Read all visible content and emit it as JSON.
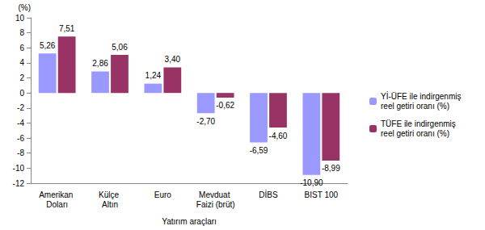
{
  "chart_data": {
    "type": "bar",
    "ylabel": "(%)",
    "xlabel": "Yatırım araçları",
    "categories": [
      "Amerikan Doları",
      "Külçe Altın",
      "Euro",
      "Mevduat Faizi (brüt)",
      "DİBS",
      "BIST 100"
    ],
    "series": [
      {
        "name": "Yİ-ÜFE ile indirgenmiş reel getiri oranı (%)",
        "color": "#9999ff",
        "values": [
          5.26,
          2.86,
          1.24,
          -2.7,
          -6.59,
          -10.9
        ],
        "value_labels": [
          "5,26",
          "2,86",
          "1,24",
          "-2,70",
          "-6,59",
          "-10,90"
        ]
      },
      {
        "name": "TÜFE ile indirgenmiş reel getiri oranı (%)",
        "color": "#993366",
        "values": [
          7.51,
          5.06,
          3.4,
          -0.62,
          -4.6,
          -8.99
        ],
        "value_labels": [
          "7,51",
          "5,06",
          "3,40",
          "-0,62",
          "-4,60",
          "-8,99"
        ]
      }
    ],
    "ylim": [
      -12,
      10
    ],
    "yticks": [
      -12,
      -10,
      -8,
      -6,
      -4,
      -2,
      0,
      2,
      4,
      6,
      8,
      10
    ],
    "grid": false,
    "legend": "right",
    "data_labels": true
  }
}
